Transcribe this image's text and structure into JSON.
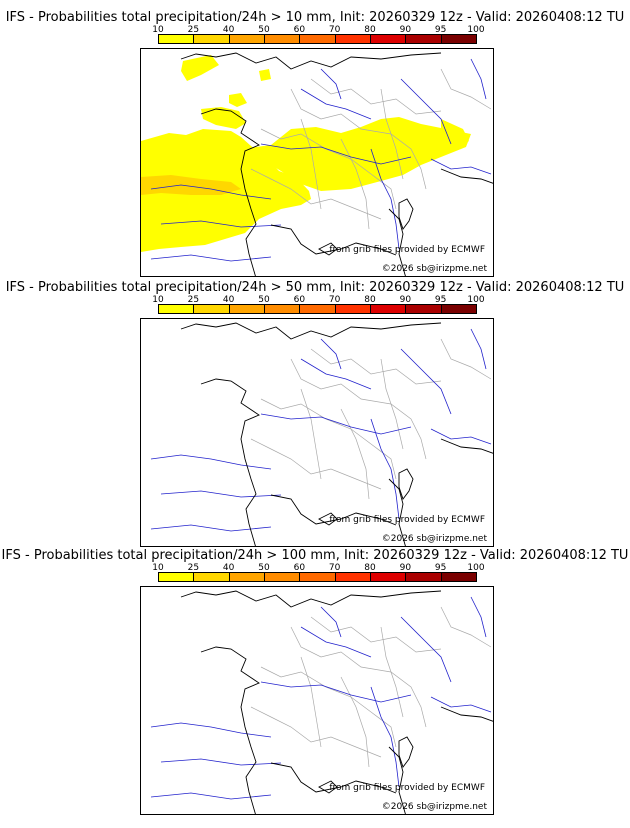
{
  "panels": [
    {
      "title": "IFS - Probabilities total precipitation/24h > 10 mm, Init: 20260329 12z - Valid: 20260408:12 TU",
      "threshold_mm": 10
    },
    {
      "title": "IFS - Probabilities total precipitation/24h > 50 mm, Init: 20260329 12z - Valid: 20260408:12 TU",
      "threshold_mm": 50
    },
    {
      "title": "IFS - Probabilities total precipitation/24h > 100 mm, Init: 20260329 12z - Valid: 20260408:12 TU",
      "threshold_mm": 100
    }
  ],
  "scale": {
    "labels": [
      "10",
      "25",
      "40",
      "50",
      "60",
      "70",
      "80",
      "90",
      "95",
      "100"
    ],
    "colors": [
      "#ffff00",
      "#ffd700",
      "#ffa500",
      "#ff8c00",
      "#ff6a00",
      "#ff3300",
      "#dd0000",
      "#aa0000",
      "#7a0000"
    ]
  },
  "credits": {
    "grib": "from grib files provided by ECMWF",
    "copyright": "©2026 sb@irizpme.net"
  },
  "colors": {
    "precip_light": "#ffff00",
    "precip_mid": "#ffd700",
    "coast": "#000000",
    "rivers": "#2222cc",
    "borders": "#aaaaaa"
  }
}
